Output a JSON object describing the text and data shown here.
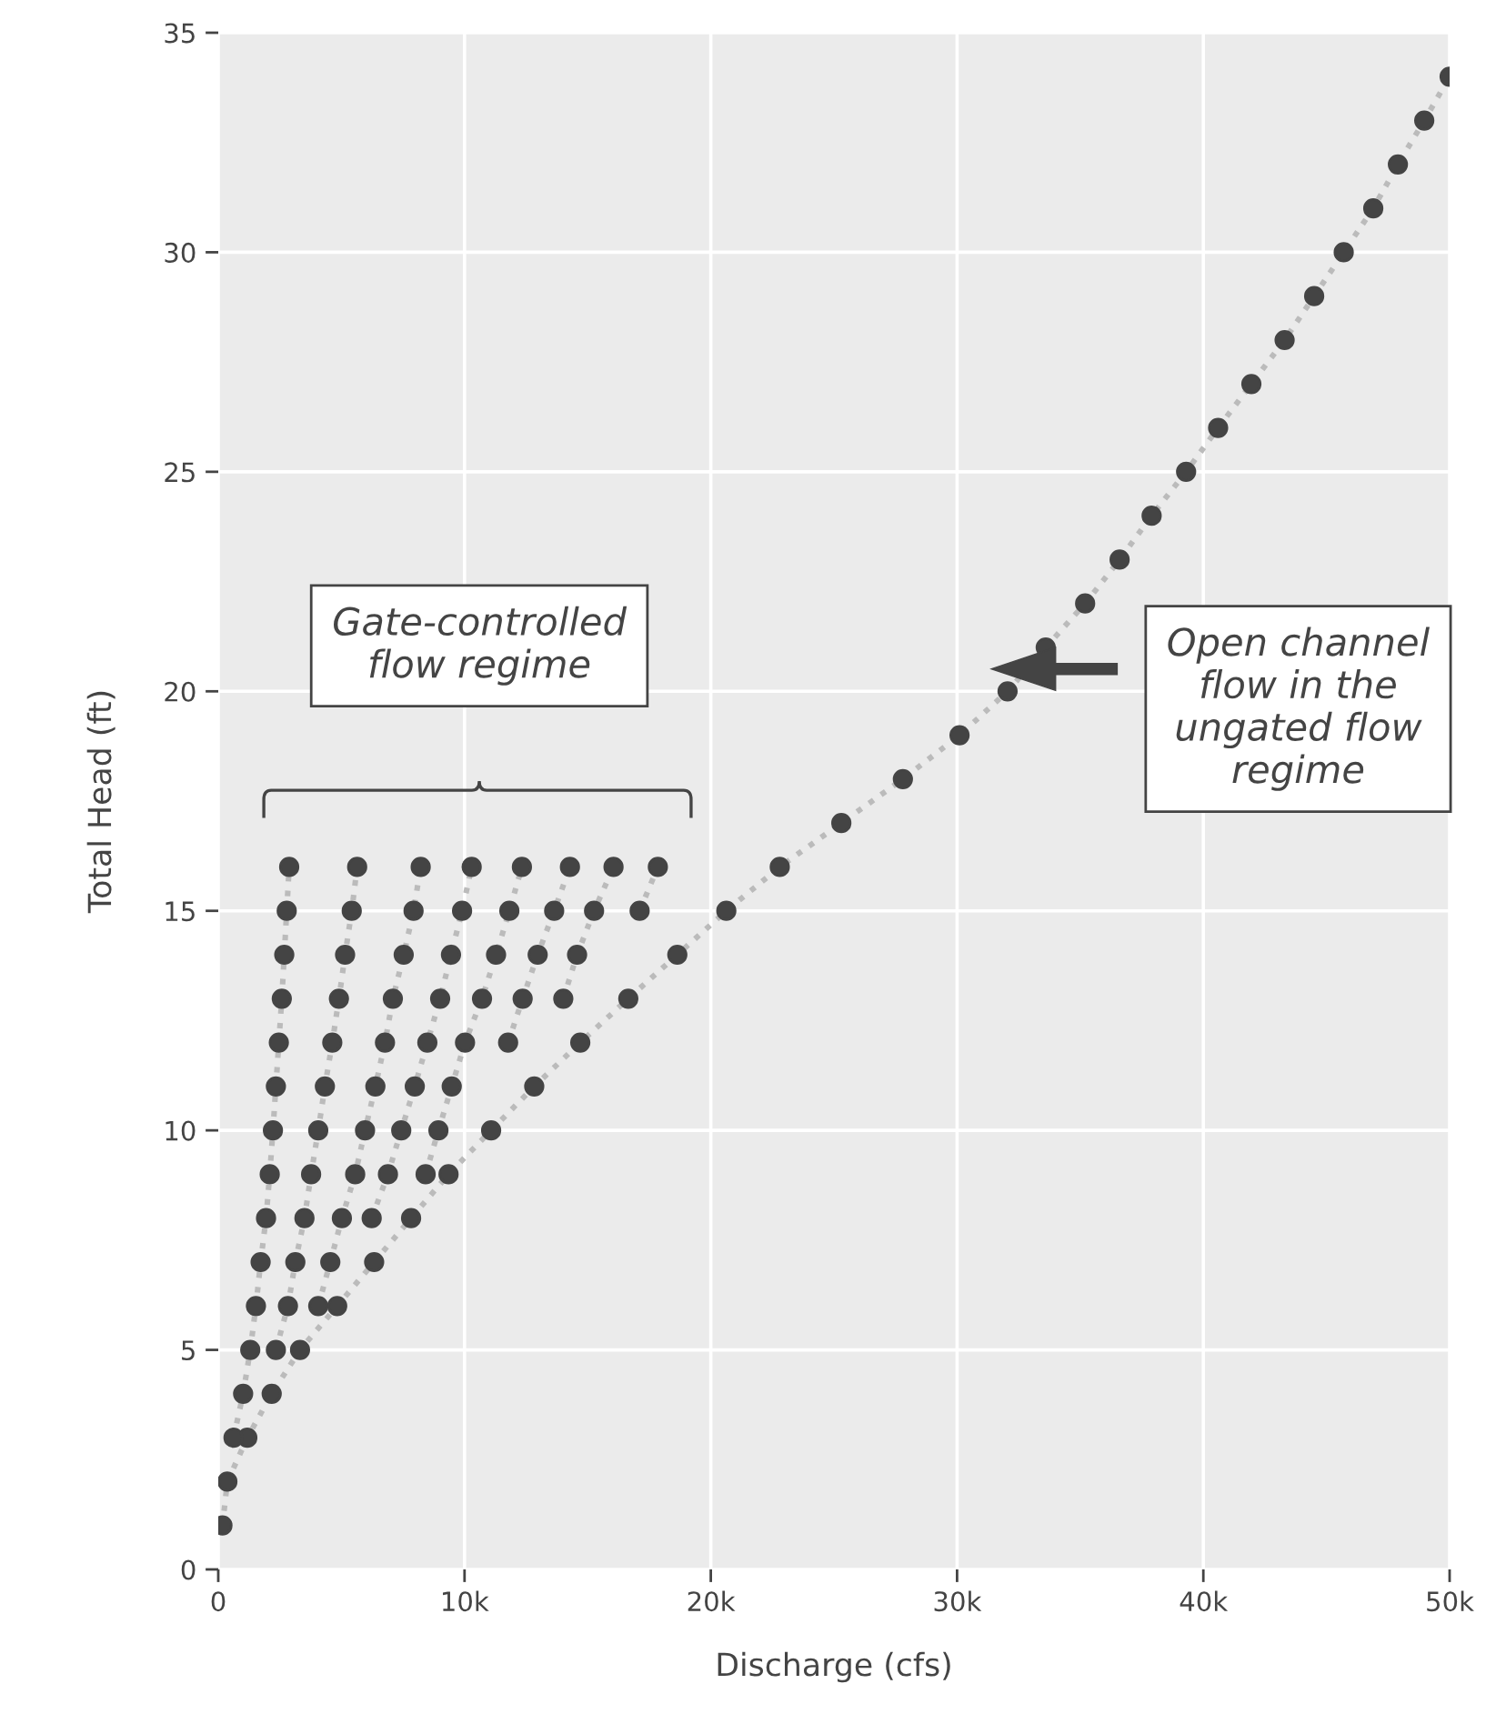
{
  "chart_data": {
    "type": "line",
    "xlabel": "Discharge (cfs)",
    "ylabel": "Total Head (ft)",
    "xlim": [
      0,
      50000
    ],
    "ylim": [
      0,
      35
    ],
    "xticks": [
      0,
      {
        "value": 10000,
        "label": "10k"
      },
      {
        "value": 20000,
        "label": "20k"
      },
      {
        "value": 30000,
        "label": "30k"
      },
      {
        "value": 40000,
        "label": "40k"
      },
      {
        "value": 50000,
        "label": "50k"
      }
    ],
    "yticks": [
      0,
      5,
      10,
      15,
      20,
      25,
      30,
      35
    ],
    "grid": true,
    "marker": "circle",
    "line_style": "dotted",
    "annotations": [
      "Gate-controlled\nflow regime",
      "Open channel\nflow in the\nungated flow\nregime"
    ],
    "series": [
      {
        "color": "#444444",
        "x": [
          170,
          370,
          1180,
          2170,
          3320,
          4830,
          6330,
          7830,
          9350,
          11080,
          12830,
          14700,
          16650,
          18640,
          20630,
          22800,
          25300,
          27800,
          30100,
          32050,
          33600,
          35200,
          36600,
          37900,
          39300,
          40600,
          41950,
          43300,
          44500,
          45700,
          46900,
          47900,
          48970,
          50000
        ],
        "values": [
          1,
          2,
          3,
          4,
          5,
          6,
          7,
          8,
          9,
          10,
          11,
          12,
          13,
          14,
          15,
          16,
          17,
          18,
          19,
          20,
          21,
          22,
          23,
          24,
          25,
          26,
          27,
          28,
          29,
          30,
          31,
          32,
          33,
          34
        ]
      },
      {
        "color": "#444444",
        "x": [
          620,
          1010,
          1300,
          1530,
          1720,
          1940,
          2090,
          2220,
          2340,
          2460,
          2580,
          2680,
          2780,
          2880
        ],
        "values": [
          3,
          4,
          5,
          6,
          7,
          8,
          9,
          10,
          11,
          12,
          13,
          14,
          15,
          16
        ]
      },
      {
        "color": "#444444",
        "x": [
          2340,
          2830,
          3130,
          3500,
          3770,
          4060,
          4330,
          4630,
          4900,
          5150,
          5420,
          5640
        ],
        "values": [
          5,
          6,
          7,
          8,
          9,
          10,
          11,
          12,
          13,
          14,
          15,
          16
        ]
      },
      {
        "color": "#444444",
        "x": [
          4060,
          4550,
          5020,
          5560,
          5960,
          6380,
          6770,
          7090,
          7530,
          7930,
          8220
        ],
        "values": [
          6,
          7,
          8,
          9,
          10,
          11,
          12,
          13,
          14,
          15,
          16
        ]
      },
      {
        "color": "#444444",
        "x": [
          6230,
          6890,
          7430,
          7980,
          8490,
          9010,
          9450,
          9900,
          10290
        ],
        "values": [
          8,
          9,
          10,
          11,
          12,
          13,
          14,
          15,
          16
        ]
      },
      {
        "color": "#444444",
        "x": [
          8420,
          8940,
          9480,
          10020,
          10710,
          11280,
          11820,
          12330
        ],
        "values": [
          9,
          10,
          11,
          12,
          13,
          14,
          15,
          16
        ]
      },
      {
        "color": "#444444",
        "x": [
          11770,
          12360,
          12970,
          13640,
          14280
        ],
        "values": [
          12,
          13,
          14,
          15,
          16
        ]
      },
      {
        "color": "#444444",
        "x": [
          14010,
          14570,
          15260,
          16050
        ],
        "values": [
          13,
          14,
          15,
          16
        ]
      },
      {
        "color": "#444444",
        "x": [
          17110,
          17850
        ],
        "values": [
          15,
          16
        ]
      }
    ]
  }
}
